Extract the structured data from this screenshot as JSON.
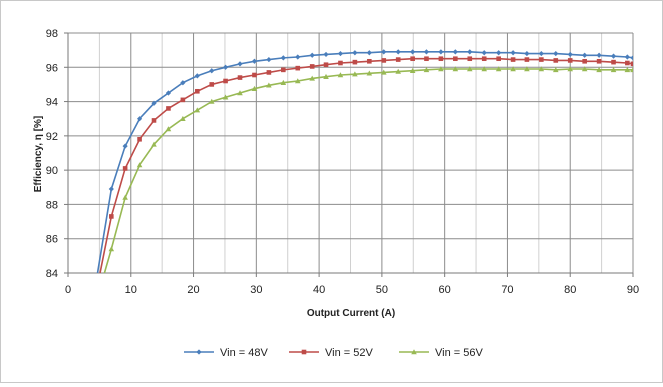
{
  "chart_data": {
    "type": "line",
    "title": "",
    "xlabel": "Output Current (A)",
    "ylabel": "Efficiency, η [%]",
    "xlim": [
      0,
      90
    ],
    "ylim": [
      84,
      98
    ],
    "xticks": [
      0,
      10,
      20,
      30,
      40,
      50,
      60,
      70,
      80,
      90
    ],
    "yticks": [
      84,
      86,
      88,
      90,
      92,
      94,
      96,
      98
    ],
    "grid": "major and minor vertical, major horizontal",
    "legend_position": "bottom",
    "series": [
      {
        "name": "Vin = 48V",
        "color": "#4a7ebb",
        "marker": "diamond",
        "points": [
          [
            4.7,
            84.0
          ],
          [
            6.9,
            88.9
          ],
          [
            9.1,
            91.4
          ],
          [
            11.4,
            93.0
          ],
          [
            13.7,
            93.9
          ],
          [
            16.0,
            94.5
          ],
          [
            18.3,
            95.1
          ],
          [
            20.6,
            95.5
          ],
          [
            22.9,
            95.8
          ],
          [
            25.1,
            96.0
          ],
          [
            27.4,
            96.2
          ],
          [
            29.7,
            96.35
          ],
          [
            32.0,
            96.45
          ],
          [
            34.3,
            96.55
          ],
          [
            36.6,
            96.6
          ],
          [
            38.9,
            96.7
          ],
          [
            41.1,
            96.75
          ],
          [
            43.4,
            96.8
          ],
          [
            45.7,
            96.85
          ],
          [
            48.0,
            96.85
          ],
          [
            50.3,
            96.9
          ],
          [
            52.6,
            96.9
          ],
          [
            54.9,
            96.9
          ],
          [
            57.1,
            96.9
          ],
          [
            59.4,
            96.9
          ],
          [
            61.7,
            96.9
          ],
          [
            64.0,
            96.9
          ],
          [
            66.3,
            96.85
          ],
          [
            68.6,
            96.85
          ],
          [
            70.9,
            96.85
          ],
          [
            73.1,
            96.8
          ],
          [
            75.4,
            96.8
          ],
          [
            77.7,
            96.8
          ],
          [
            80.0,
            96.75
          ],
          [
            82.3,
            96.7
          ],
          [
            84.6,
            96.7
          ],
          [
            86.9,
            96.65
          ],
          [
            89.1,
            96.6
          ],
          [
            90.0,
            96.55
          ]
        ]
      },
      {
        "name": "Vin = 52V",
        "color": "#be4b48",
        "marker": "square",
        "points": [
          [
            5.1,
            84.0
          ],
          [
            6.9,
            87.3
          ],
          [
            9.1,
            90.1
          ],
          [
            11.4,
            91.8
          ],
          [
            13.7,
            92.9
          ],
          [
            16.0,
            93.6
          ],
          [
            18.3,
            94.1
          ],
          [
            20.6,
            94.6
          ],
          [
            22.9,
            95.0
          ],
          [
            25.1,
            95.2
          ],
          [
            27.4,
            95.4
          ],
          [
            29.7,
            95.55
          ],
          [
            32.0,
            95.7
          ],
          [
            34.3,
            95.85
          ],
          [
            36.6,
            95.95
          ],
          [
            38.9,
            96.05
          ],
          [
            41.1,
            96.15
          ],
          [
            43.4,
            96.25
          ],
          [
            45.7,
            96.3
          ],
          [
            48.0,
            96.35
          ],
          [
            50.3,
            96.4
          ],
          [
            52.6,
            96.45
          ],
          [
            54.9,
            96.5
          ],
          [
            57.1,
            96.5
          ],
          [
            59.4,
            96.5
          ],
          [
            61.7,
            96.5
          ],
          [
            64.0,
            96.5
          ],
          [
            66.3,
            96.5
          ],
          [
            68.6,
            96.5
          ],
          [
            70.9,
            96.45
          ],
          [
            73.1,
            96.45
          ],
          [
            75.4,
            96.45
          ],
          [
            77.7,
            96.4
          ],
          [
            80.0,
            96.4
          ],
          [
            82.3,
            96.35
          ],
          [
            84.6,
            96.35
          ],
          [
            86.9,
            96.3
          ],
          [
            89.1,
            96.25
          ],
          [
            90.0,
            96.2
          ]
        ]
      },
      {
        "name": "Vin = 56V",
        "color": "#98b954",
        "marker": "triangle",
        "points": [
          [
            5.8,
            84.0
          ],
          [
            6.9,
            85.4
          ],
          [
            9.1,
            88.4
          ],
          [
            11.4,
            90.3
          ],
          [
            13.7,
            91.5
          ],
          [
            16.0,
            92.4
          ],
          [
            18.3,
            93.0
          ],
          [
            20.6,
            93.5
          ],
          [
            22.9,
            94.0
          ],
          [
            25.1,
            94.25
          ],
          [
            27.4,
            94.5
          ],
          [
            29.7,
            94.75
          ],
          [
            32.0,
            94.95
          ],
          [
            34.3,
            95.1
          ],
          [
            36.6,
            95.2
          ],
          [
            38.9,
            95.35
          ],
          [
            41.1,
            95.45
          ],
          [
            43.4,
            95.55
          ],
          [
            45.7,
            95.6
          ],
          [
            48.0,
            95.65
          ],
          [
            50.3,
            95.7
          ],
          [
            52.6,
            95.75
          ],
          [
            54.9,
            95.8
          ],
          [
            57.1,
            95.85
          ],
          [
            59.4,
            95.9
          ],
          [
            61.7,
            95.9
          ],
          [
            64.0,
            95.9
          ],
          [
            66.3,
            95.9
          ],
          [
            68.6,
            95.9
          ],
          [
            70.9,
            95.9
          ],
          [
            73.1,
            95.9
          ],
          [
            75.4,
            95.9
          ],
          [
            77.7,
            95.85
          ],
          [
            80.0,
            95.9
          ],
          [
            82.3,
            95.9
          ],
          [
            84.6,
            95.85
          ],
          [
            86.9,
            95.85
          ],
          [
            89.1,
            95.85
          ],
          [
            90.0,
            95.85
          ]
        ]
      }
    ]
  }
}
